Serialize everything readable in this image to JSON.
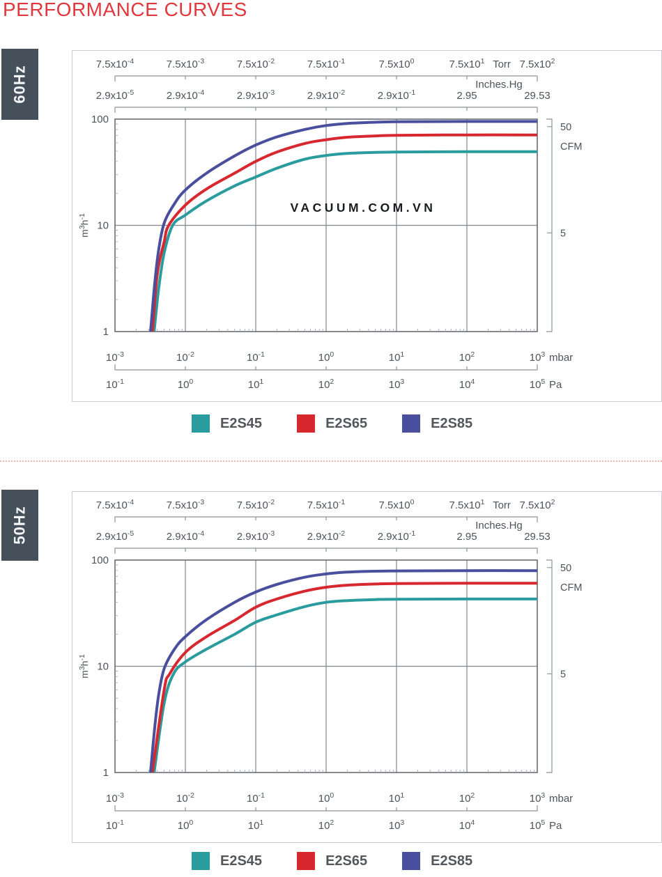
{
  "page": {
    "title": "PERFORMANCE CURVES"
  },
  "sections": [
    {
      "tab": "60Hz"
    },
    {
      "tab": "50Hz"
    }
  ],
  "legend": [
    {
      "label": "E2S45",
      "color": "#2A9C9E"
    },
    {
      "label": "E2S65",
      "color": "#D7282F"
    },
    {
      "label": "E2S85",
      "color": "#4A4F9D"
    }
  ],
  "colors": {
    "title_red": "#E0383C",
    "tab_background": "#46505A",
    "grid": "#7E858C",
    "plot_border": "#5B636B",
    "axis_bracket": "#8A9299",
    "label_text": "#4C5359",
    "divider_dotted": "#ECB5AC"
  },
  "chart_data": [
    {
      "type": "line",
      "title": "60Hz",
      "x_scale": "log",
      "y_scale": "log",
      "x_range_mbar": [
        0.001,
        1000
      ],
      "y_range_m3h": [
        1,
        100
      ],
      "grid": "on",
      "watermark": "VACUUM.COM.VN",
      "axes": {
        "torr": {
          "unit": "Torr",
          "ticks": [
            "7.5x10^-4",
            "7.5x10^-3",
            "7.5x10^-2",
            "7.5x10^-1",
            "7.5x10^0",
            "7.5x10^1",
            "7.5x10^2"
          ]
        },
        "inches_hg": {
          "unit": "Inches.Hg",
          "ticks": [
            "2.9x10^-5",
            "2.9x10^-4",
            "2.9x10^-3",
            "2.9x10^-2",
            "2.9x10^-1",
            "2.95",
            "29.53"
          ]
        },
        "mbar": {
          "unit": "mbar",
          "ticks": [
            "10^-3",
            "10^-2",
            "10^-1",
            "10^0",
            "10^1",
            "10^2",
            "10^3"
          ]
        },
        "pa": {
          "unit": "Pa",
          "ticks": [
            "10^-1",
            "10^0",
            "10^1",
            "10^2",
            "10^3",
            "10^4",
            "10^5"
          ]
        },
        "y": {
          "unit": "m3h-1",
          "ticks": [
            "100",
            "10",
            "1"
          ]
        },
        "cfm": {
          "unit": "CFM",
          "ticks": [
            {
              "label": "50",
              "m3h": 84.95
            },
            {
              "label": "5",
              "m3h": 8.495
            }
          ]
        }
      },
      "series": [
        {
          "name": "E2S45",
          "color": "#2A9C9E",
          "points": [
            [
              0.0036,
              1
            ],
            [
              0.0042,
              2.6
            ],
            [
              0.005,
              5.5
            ],
            [
              0.0066,
              10
            ],
            [
              0.01,
              12.5
            ],
            [
              0.02,
              17
            ],
            [
              0.05,
              23.5
            ],
            [
              0.1,
              28.5
            ],
            [
              0.2,
              34.5
            ],
            [
              0.5,
              42
            ],
            [
              1,
              45.5
            ],
            [
              2,
              47.5
            ],
            [
              5,
              48.6
            ],
            [
              10,
              49
            ],
            [
              100,
              49.3
            ],
            [
              1000,
              49.3
            ]
          ]
        },
        {
          "name": "E2S65",
          "color": "#D7282F",
          "points": [
            [
              0.0034,
              1
            ],
            [
              0.004,
              3.5
            ],
            [
              0.005,
              7
            ],
            [
              0.0058,
              10
            ],
            [
              0.01,
              15.5
            ],
            [
              0.02,
              22
            ],
            [
              0.05,
              31
            ],
            [
              0.1,
              40
            ],
            [
              0.2,
              49
            ],
            [
              0.5,
              59
            ],
            [
              1,
              64
            ],
            [
              2,
              67.5
            ],
            [
              5,
              69.5
            ],
            [
              10,
              70.5
            ],
            [
              100,
              71
            ],
            [
              1000,
              71
            ]
          ]
        },
        {
          "name": "E2S85",
          "color": "#4A4F9D",
          "points": [
            [
              0.0032,
              1
            ],
            [
              0.0037,
              3
            ],
            [
              0.0042,
              6
            ],
            [
              0.005,
              10.5
            ],
            [
              0.007,
              16
            ],
            [
              0.01,
              21.5
            ],
            [
              0.02,
              31
            ],
            [
              0.05,
              45
            ],
            [
              0.1,
              57
            ],
            [
              0.2,
              68
            ],
            [
              0.5,
              80
            ],
            [
              1,
              87
            ],
            [
              2,
              91
            ],
            [
              5,
              93.5
            ],
            [
              10,
              94.5
            ],
            [
              100,
              95
            ],
            [
              1000,
              95
            ]
          ]
        }
      ]
    },
    {
      "type": "line",
      "title": "50Hz",
      "x_scale": "log",
      "y_scale": "log",
      "x_range_mbar": [
        0.001,
        1000
      ],
      "y_range_m3h": [
        1,
        100
      ],
      "grid": "on",
      "watermark": "",
      "axes": {
        "torr": {
          "unit": "Torr",
          "ticks": [
            "7.5x10^-4",
            "7.5x10^-3",
            "7.5x10^-2",
            "7.5x10^-1",
            "7.5x10^0",
            "7.5x10^1",
            "7.5x10^2"
          ]
        },
        "inches_hg": {
          "unit": "Inches.Hg",
          "ticks": [
            "2.9x10^-5",
            "2.9x10^-4",
            "2.9x10^-3",
            "2.9x10^-2",
            "2.9x10^-1",
            "2.95",
            "29.53"
          ]
        },
        "mbar": {
          "unit": "mbar",
          "ticks": [
            "10^-3",
            "10^-2",
            "10^-1",
            "10^0",
            "10^1",
            "10^2",
            "10^3"
          ]
        },
        "pa": {
          "unit": "Pa",
          "ticks": [
            "10^-1",
            "10^0",
            "10^1",
            "10^2",
            "10^3",
            "10^4",
            "10^5"
          ]
        },
        "y": {
          "unit": "m3h-1",
          "ticks": [
            "100",
            "10",
            "1"
          ]
        },
        "cfm": {
          "unit": "CFM",
          "ticks": [
            {
              "label": "50",
              "m3h": 84.95
            },
            {
              "label": "5",
              "m3h": 8.495
            }
          ]
        }
      },
      "series": [
        {
          "name": "E2S45",
          "color": "#2A9C9E",
          "points": [
            [
              0.0036,
              1
            ],
            [
              0.005,
              4.5
            ],
            [
              0.0068,
              8.5
            ],
            [
              0.01,
              11
            ],
            [
              0.02,
              14.5
            ],
            [
              0.05,
              20
            ],
            [
              0.1,
              26
            ],
            [
              0.2,
              30.5
            ],
            [
              0.5,
              36.5
            ],
            [
              1,
              40
            ],
            [
              2,
              41.5
            ],
            [
              5,
              42.5
            ],
            [
              10,
              42.8
            ],
            [
              100,
              43
            ],
            [
              1000,
              43
            ]
          ]
        },
        {
          "name": "E2S65",
          "color": "#D7282F",
          "points": [
            [
              0.0034,
              1
            ],
            [
              0.005,
              6
            ],
            [
              0.006,
              8.5
            ],
            [
              0.01,
              13.5
            ],
            [
              0.02,
              19
            ],
            [
              0.05,
              27
            ],
            [
              0.1,
              36
            ],
            [
              0.2,
              43
            ],
            [
              0.5,
              51
            ],
            [
              1,
              55.5
            ],
            [
              2,
              58
            ],
            [
              5,
              59.5
            ],
            [
              10,
              60
            ],
            [
              100,
              60.5
            ],
            [
              1000,
              60.5
            ]
          ]
        },
        {
          "name": "E2S85",
          "color": "#4A4F9D",
          "points": [
            [
              0.0032,
              1
            ],
            [
              0.0037,
              2.8
            ],
            [
              0.0042,
              5.5
            ],
            [
              0.005,
              9.5
            ],
            [
              0.007,
              14.5
            ],
            [
              0.01,
              19
            ],
            [
              0.02,
              27.5
            ],
            [
              0.05,
              40
            ],
            [
              0.1,
              50
            ],
            [
              0.2,
              59
            ],
            [
              0.5,
              69
            ],
            [
              1,
              74
            ],
            [
              2,
              77
            ],
            [
              5,
              78.5
            ],
            [
              10,
              79
            ],
            [
              100,
              79.5
            ],
            [
              1000,
              79.5
            ]
          ]
        }
      ]
    }
  ]
}
